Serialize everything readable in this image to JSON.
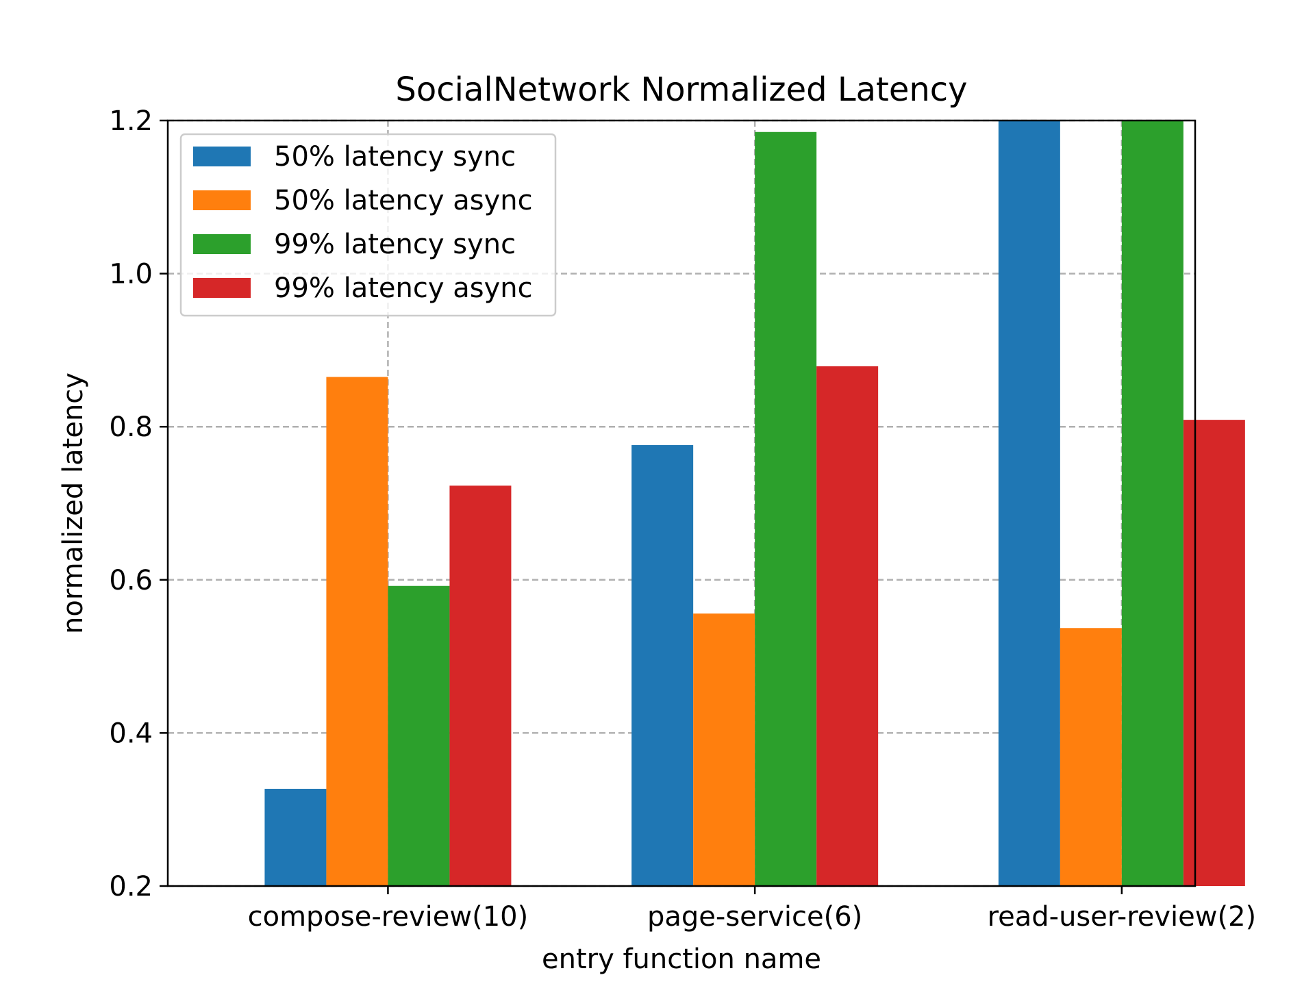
{
  "chart_data": {
    "type": "bar",
    "title": "SocialNetwork Normalized Latency",
    "xlabel": "entry function name",
    "ylabel": "normalized latency",
    "categories": [
      "compose-review(10)",
      "page-service(6)",
      "read-user-review(2)"
    ],
    "ylim": [
      0.2,
      1.2
    ],
    "yticks": [
      "0.2",
      "0.4",
      "0.6",
      "0.8",
      "1.0",
      "1.2"
    ],
    "grid": true,
    "legend_position": "upper-left",
    "series": [
      {
        "name": "50% latency sync",
        "color": "#1f77b4",
        "values": [
          0.327,
          0.776,
          1.2
        ]
      },
      {
        "name": "50% latency async",
        "color": "#ff7f0e",
        "values": [
          0.865,
          0.556,
          0.537
        ]
      },
      {
        "name": "99% latency sync",
        "color": "#2ca02c",
        "values": [
          0.592,
          1.185,
          1.2
        ]
      },
      {
        "name": "99% latency async",
        "color": "#d62728",
        "values": [
          0.723,
          0.879,
          0.809
        ]
      }
    ]
  }
}
